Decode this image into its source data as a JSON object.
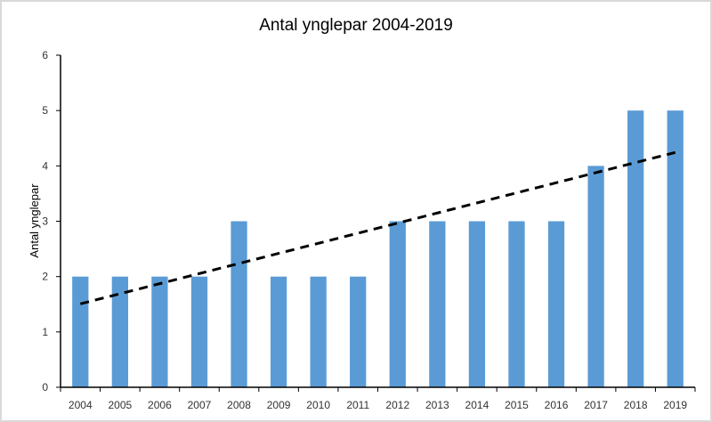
{
  "chart_data": {
    "type": "bar",
    "title": "Antal ynglepar 2004-2019",
    "xlabel": "",
    "ylabel": "Antal ynglepar",
    "categories": [
      "2004",
      "2005",
      "2006",
      "2007",
      "2008",
      "2009",
      "2010",
      "2011",
      "2012",
      "2013",
      "2014",
      "2015",
      "2016",
      "2017",
      "2018",
      "2019"
    ],
    "values": [
      2,
      2,
      2,
      2,
      3,
      2,
      2,
      2,
      3,
      3,
      3,
      3,
      3,
      4,
      5,
      5
    ],
    "ylim": [
      0,
      6
    ],
    "yticks": [
      "0",
      "1",
      "2",
      "3",
      "4",
      "5",
      "6"
    ],
    "trendline": {
      "type": "linear",
      "style": "dashed",
      "color": "#000000"
    },
    "bar_color": "#5b9bd5",
    "grid": false,
    "legend": "none"
  }
}
